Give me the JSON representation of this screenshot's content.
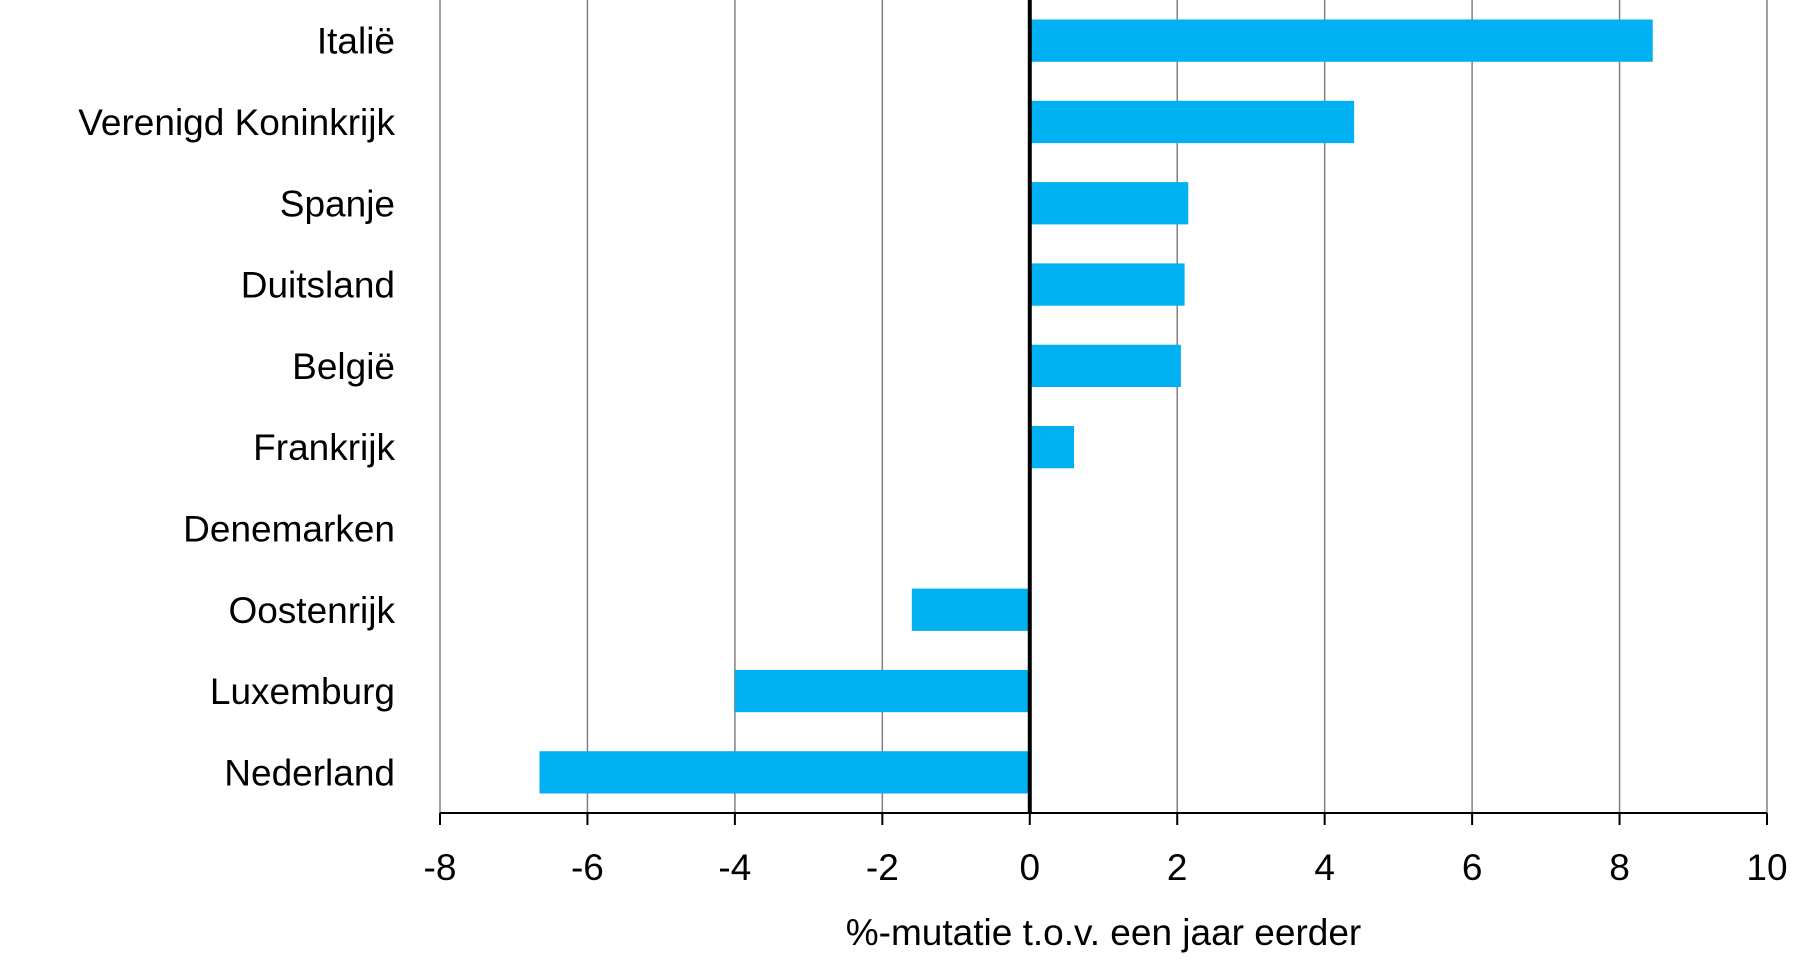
{
  "chart_data": {
    "type": "bar",
    "orientation": "horizontal",
    "categories": [
      "Italië",
      "Verenigd Koninkrijk",
      "Spanje",
      "Duitsland",
      "België",
      "Frankrijk",
      "Denemarken",
      "Oostenrijk",
      "Luxemburg",
      "Nederland"
    ],
    "values": [
      8.45,
      4.4,
      2.15,
      2.1,
      2.05,
      0.6,
      0.0,
      -1.6,
      -4.0,
      -6.65
    ],
    "xlabel": "%-mutatie t.o.v. een jaar eerder",
    "ylabel": "",
    "xlim": [
      -8,
      10
    ],
    "xticks": [
      "-8",
      "-6",
      "-4",
      "-2",
      "0",
      "2",
      "4",
      "6",
      "8",
      "10"
    ],
    "grid": "vertical",
    "legend": "none",
    "bar_color": "#00B0F0",
    "grid_color": "#808080",
    "zero_line_color": "#000000"
  }
}
